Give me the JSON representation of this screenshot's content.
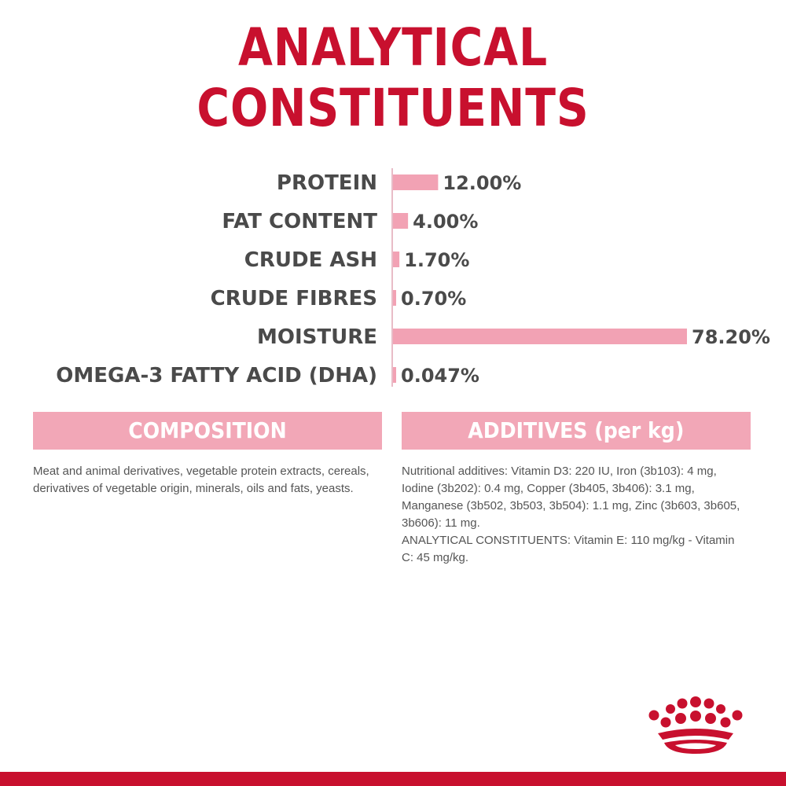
{
  "title": "ANALYTICAL CONSTITUENTS",
  "chart_data": {
    "type": "bar",
    "orientation": "horizontal",
    "categories": [
      "PROTEIN",
      "FAT CONTENT",
      "CRUDE ASH",
      "CRUDE FIBRES",
      "MOISTURE",
      "OMEGA-3 FATTY ACID (DHA)"
    ],
    "values": [
      12.0,
      4.0,
      1.7,
      0.7,
      78.2,
      0.047
    ],
    "value_labels": [
      "12.00%",
      "4.00%",
      "1.70%",
      "0.70%",
      "78.20%",
      "0.047%"
    ],
    "unit": "%",
    "xlim": [
      0,
      78.2
    ],
    "bar_color": "#f2a2b4",
    "grid": false
  },
  "composition": {
    "heading": "COMPOSITION",
    "text": "Meat and animal derivatives, vegetable protein extracts, cereals, derivatives of vegetable origin, minerals, oils and fats, yeasts."
  },
  "additives": {
    "heading": "ADDITIVES (per kg)",
    "lines": [
      "Nutritional additives: Vitamin D3: 220 IU, Iron (3b103): 4 mg, Iodine (3b202): 0.4 mg, Copper (3b405, 3b406): 3.1 mg, Manganese (3b502, 3b503, 3b504): 1.1 mg, Zinc (3b603, 3b605, 3b606): 11 mg.",
      "ANALYTICAL CONSTITUENTS: Vitamin E: 110 mg/kg - Vitamin C: 45 mg/kg."
    ]
  },
  "colors": {
    "brand_red": "#c8102e",
    "header_pink": "#f2a7b7",
    "text_gray": "#4a4a4a"
  },
  "logo": {
    "icon": "royal-canin-crown-logo-icon"
  }
}
